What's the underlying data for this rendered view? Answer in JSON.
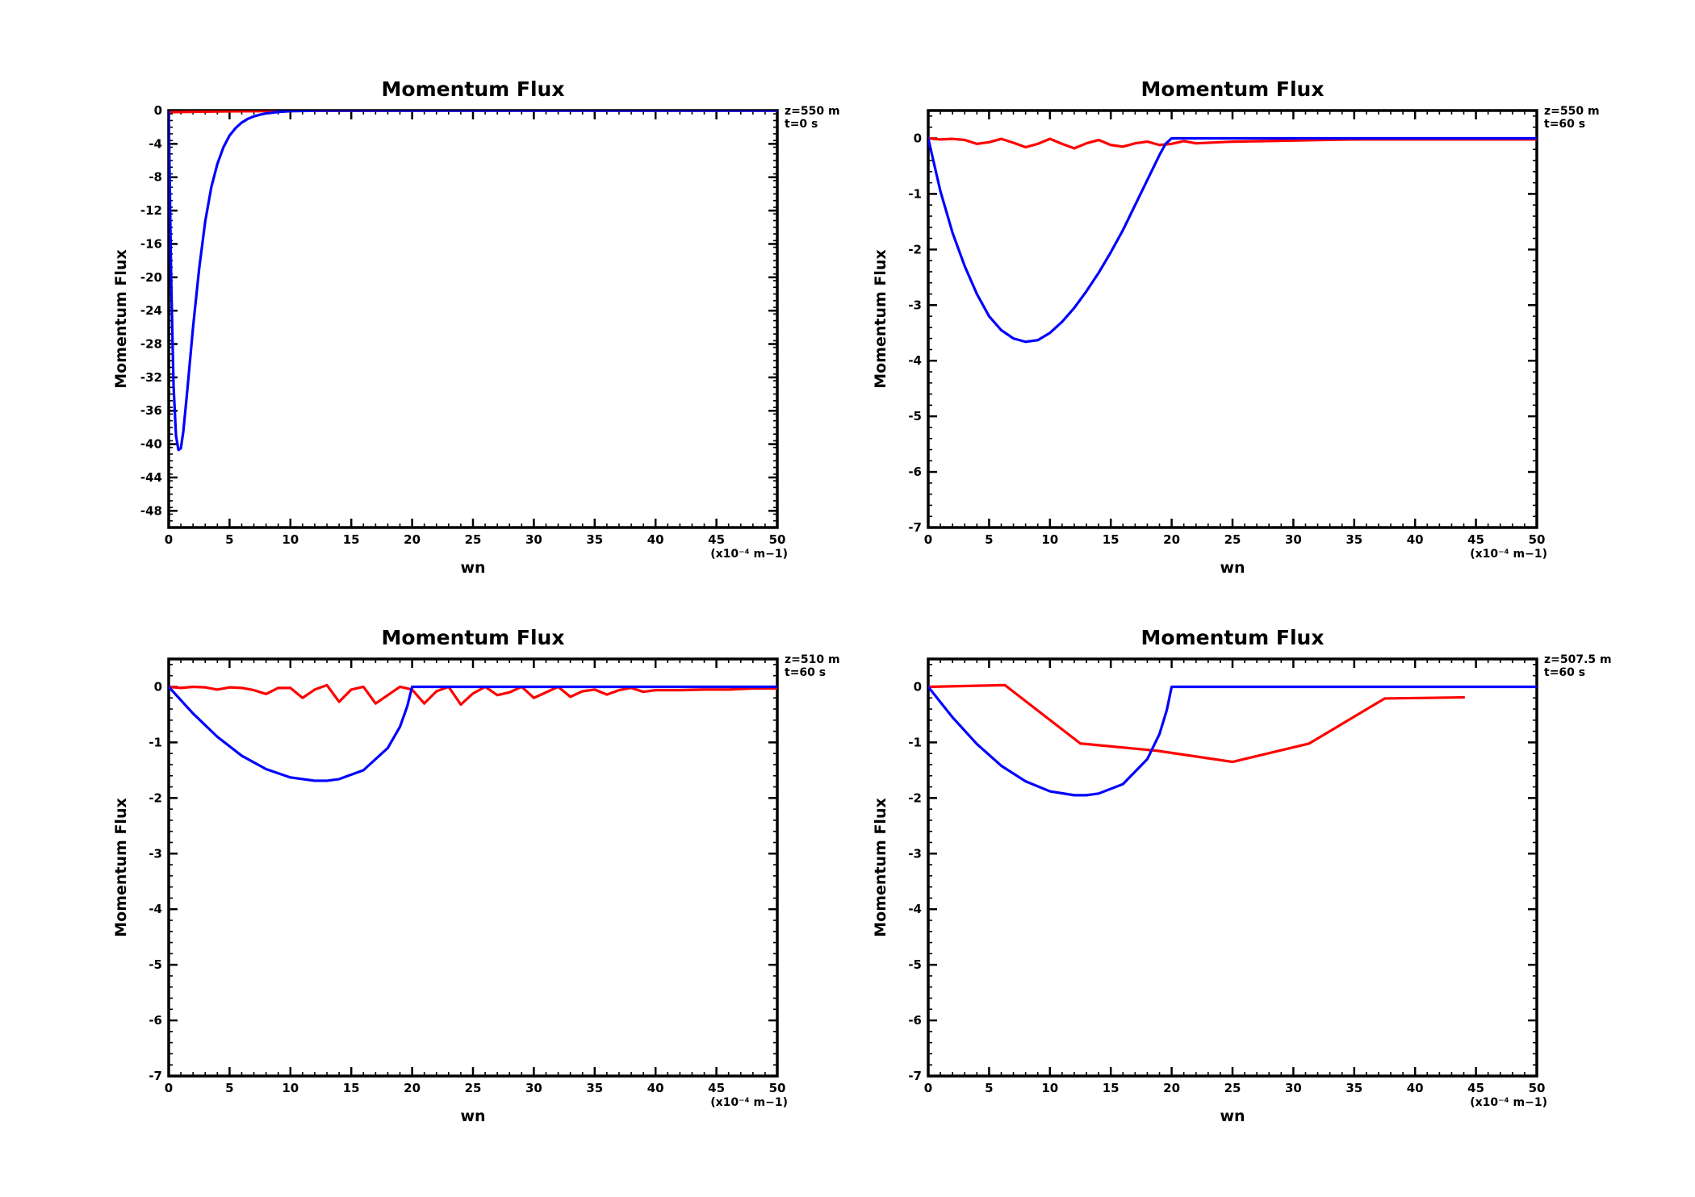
{
  "colors": {
    "red_series": "#ff0000",
    "blue_series": "#0000ff",
    "axes": "#000000",
    "background": "#ffffff"
  },
  "chart_data": [
    {
      "type": "line",
      "title": "Momentum Flux",
      "xlabel": "wn",
      "ylabel": "Momentum Flux",
      "x_unit_label": "(x10⁻⁴ m−1)",
      "annotations": [
        "z=550 m",
        "t=0 s"
      ],
      "xlim": [
        0,
        50
      ],
      "ylim": [
        -50,
        0
      ],
      "xticks": [
        0,
        5,
        10,
        15,
        20,
        25,
        30,
        35,
        40,
        45,
        50
      ],
      "yticks": [
        0,
        -4,
        -8,
        -12,
        -16,
        -20,
        -24,
        -28,
        -32,
        -36,
        -40,
        -44,
        -48
      ],
      "grid": false,
      "series": [
        {
          "color": "#ff0000",
          "x": [
            0,
            5,
            10,
            20,
            30,
            40,
            50
          ],
          "y": [
            -0.2,
            -0.1,
            -0.05,
            0,
            0,
            0,
            0
          ]
        },
        {
          "color": "#0000ff",
          "x": [
            0,
            0.2,
            0.4,
            0.6,
            0.8,
            1.0,
            1.2,
            1.5,
            2.0,
            2.5,
            3.0,
            3.5,
            4.0,
            4.5,
            5.0,
            5.5,
            6.0,
            6.5,
            7.0,
            7.5,
            8.0,
            9.0,
            10.0,
            12.0,
            15.0,
            20.0,
            30.0,
            40.0,
            50.0
          ],
          "y": [
            0,
            -20,
            -33,
            -39,
            -40.7,
            -40.5,
            -38.5,
            -34,
            -26,
            -19,
            -13.3,
            -9.2,
            -6.4,
            -4.4,
            -3.0,
            -2.1,
            -1.45,
            -1.0,
            -0.7,
            -0.5,
            -0.35,
            -0.17,
            -0.08,
            -0.02,
            0,
            0,
            0,
            0,
            0
          ]
        }
      ]
    },
    {
      "type": "line",
      "title": "Momentum Flux",
      "xlabel": "wn",
      "ylabel": "Momentum Flux",
      "x_unit_label": "(x10⁻⁴ m−1)",
      "annotations": [
        "z=550 m",
        "t=60 s"
      ],
      "xlim": [
        0,
        50
      ],
      "ylim": [
        -7,
        0.5
      ],
      "xticks": [
        0,
        5,
        10,
        15,
        20,
        25,
        30,
        35,
        40,
        45,
        50
      ],
      "yticks": [
        0,
        -1,
        -2,
        -3,
        -4,
        -5,
        -6,
        -7
      ],
      "grid": false,
      "series": [
        {
          "color": "#ff0000",
          "x": [
            0,
            1,
            2,
            3,
            4,
            5,
            6,
            7,
            8,
            9,
            10,
            11,
            12,
            13,
            14,
            15,
            16,
            17,
            18,
            19,
            20,
            21,
            22,
            25,
            30,
            35,
            40,
            45,
            50
          ],
          "y": [
            0,
            -0.02,
            -0.01,
            -0.03,
            -0.1,
            -0.07,
            -0.01,
            -0.08,
            -0.16,
            -0.1,
            -0.01,
            -0.1,
            -0.18,
            -0.09,
            -0.03,
            -0.12,
            -0.15,
            -0.09,
            -0.06,
            -0.12,
            -0.1,
            -0.05,
            -0.09,
            -0.06,
            -0.04,
            -0.02,
            -0.02,
            -0.02,
            -0.02
          ]
        },
        {
          "color": "#0000ff",
          "x": [
            0,
            1,
            2,
            3,
            4,
            5,
            6,
            7,
            8,
            9,
            10,
            11,
            12,
            13,
            14,
            15,
            16,
            17,
            18,
            19,
            19.5,
            20,
            20.05,
            25,
            30,
            40,
            50
          ],
          "y": [
            0,
            -0.95,
            -1.7,
            -2.3,
            -2.8,
            -3.2,
            -3.45,
            -3.6,
            -3.66,
            -3.63,
            -3.5,
            -3.3,
            -3.05,
            -2.75,
            -2.42,
            -2.05,
            -1.65,
            -1.2,
            -0.75,
            -0.3,
            -0.1,
            0,
            0,
            0,
            0,
            0,
            0
          ]
        }
      ]
    },
    {
      "type": "line",
      "title": "Momentum Flux",
      "xlabel": "wn",
      "ylabel": "Momentum Flux",
      "x_unit_label": "(x10⁻⁴ m−1)",
      "annotations": [
        "z=510 m",
        "t=60 s"
      ],
      "xlim": [
        0,
        50
      ],
      "ylim": [
        -7,
        0.5
      ],
      "xticks": [
        0,
        5,
        10,
        15,
        20,
        25,
        30,
        35,
        40,
        45,
        50
      ],
      "yticks": [
        0,
        -1,
        -2,
        -3,
        -4,
        -5,
        -6,
        -7
      ],
      "grid": false,
      "series": [
        {
          "color": "#ff0000",
          "x": [
            0,
            1,
            2,
            3,
            4,
            5,
            6,
            7,
            8,
            9,
            10,
            11,
            12,
            13,
            14,
            15,
            16,
            17,
            18,
            19,
            20,
            21,
            22,
            23,
            24,
            25,
            26,
            27,
            28,
            29,
            30,
            31,
            32,
            33,
            34,
            35,
            36,
            37,
            38,
            39,
            40,
            42,
            44,
            46,
            48,
            50
          ],
          "y": [
            0,
            -0.02,
            0,
            -0.01,
            -0.05,
            -0.01,
            -0.02,
            -0.06,
            -0.13,
            -0.02,
            -0.02,
            -0.2,
            -0.05,
            0.03,
            -0.27,
            -0.05,
            0,
            -0.3,
            -0.15,
            0,
            -0.05,
            -0.3,
            -0.08,
            0,
            -0.32,
            -0.12,
            0,
            -0.15,
            -0.1,
            0,
            -0.2,
            -0.1,
            0,
            -0.18,
            -0.08,
            -0.05,
            -0.14,
            -0.06,
            -0.02,
            -0.09,
            -0.06,
            -0.06,
            -0.05,
            -0.05,
            -0.03,
            -0.03
          ]
        },
        {
          "color": "#0000ff",
          "x": [
            0,
            2,
            4,
            6,
            8,
            10,
            12,
            13,
            14,
            16,
            18,
            19,
            19.6,
            20,
            20.05,
            25,
            30,
            40,
            50
          ],
          "y": [
            0,
            -0.48,
            -0.9,
            -1.24,
            -1.48,
            -1.63,
            -1.69,
            -1.69,
            -1.66,
            -1.5,
            -1.1,
            -0.72,
            -0.35,
            0,
            0,
            0,
            0,
            0,
            0
          ]
        }
      ]
    },
    {
      "type": "line",
      "title": "Momentum Flux",
      "xlabel": "wn",
      "ylabel": "Momentum Flux",
      "x_unit_label": "(x10⁻⁴ m−1)",
      "annotations": [
        "z=507.5 m",
        "t=60 s"
      ],
      "xlim": [
        0,
        50
      ],
      "ylim": [
        -7,
        0.5
      ],
      "xticks": [
        0,
        5,
        10,
        15,
        20,
        25,
        30,
        35,
        40,
        45,
        50
      ],
      "yticks": [
        0,
        -1,
        -2,
        -3,
        -4,
        -5,
        -6,
        -7
      ],
      "grid": false,
      "series": [
        {
          "color": "#ff0000",
          "x": [
            0,
            6.3,
            12.5,
            18.8,
            25,
            31.3,
            37.5,
            44
          ],
          "y": [
            0,
            0.03,
            -1.02,
            -1.15,
            -1.35,
            -1.02,
            -0.21,
            -0.19
          ]
        },
        {
          "color": "#0000ff",
          "x": [
            0,
            2,
            4,
            6,
            8,
            10,
            12,
            13,
            14,
            16,
            18,
            19,
            19.6,
            20,
            20.05,
            25,
            30,
            40,
            50
          ],
          "y": [
            0,
            -0.55,
            -1.03,
            -1.42,
            -1.7,
            -1.88,
            -1.95,
            -1.95,
            -1.92,
            -1.75,
            -1.3,
            -0.85,
            -0.42,
            0,
            0,
            0,
            0,
            0,
            0
          ]
        }
      ]
    }
  ]
}
